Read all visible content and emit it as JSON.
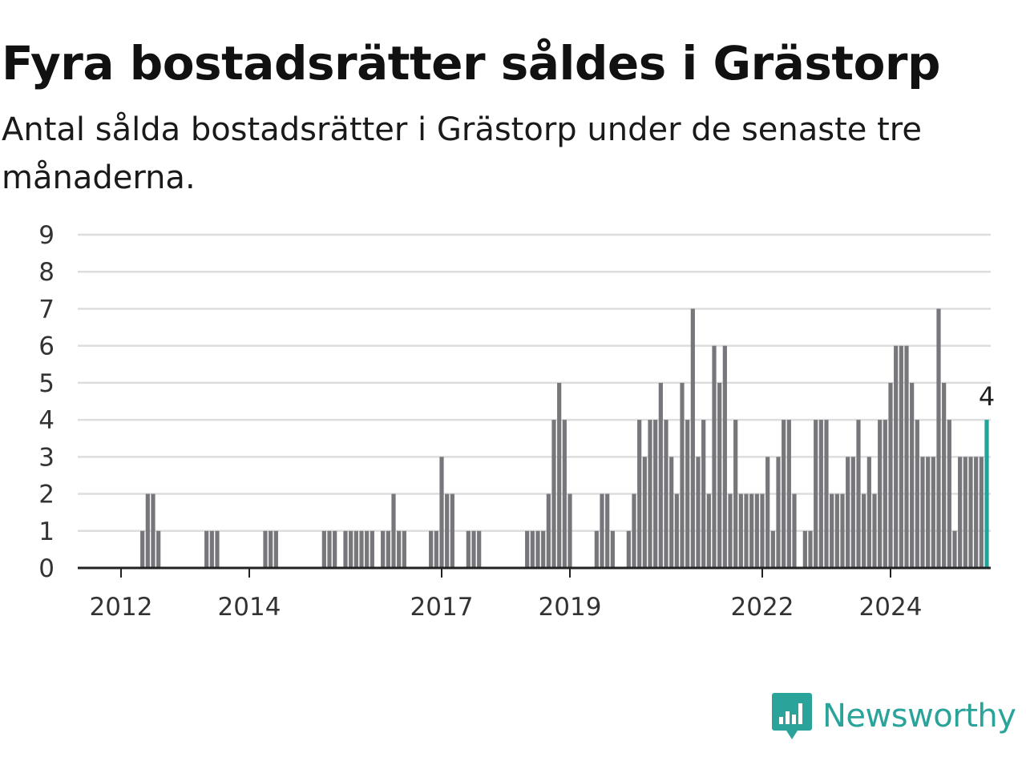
{
  "header": {
    "title": "Fyra bostadsrätter såldes i Grästorp",
    "subtitle": "Antal sålda bostadsrätter i Grästorp under de senaste tre månaderna."
  },
  "brand": {
    "name": "Newsworthy",
    "color": "#2aa39a",
    "icon": "newsworthy-logo-icon"
  },
  "chart_data": {
    "type": "bar",
    "x_unit": "month",
    "start_month": "2011-07",
    "values": [
      0,
      0,
      0,
      0,
      0,
      0,
      0,
      0,
      0,
      0,
      1,
      2,
      2,
      1,
      0,
      0,
      0,
      0,
      0,
      0,
      0,
      0,
      1,
      1,
      1,
      0,
      0,
      0,
      0,
      0,
      0,
      0,
      0,
      1,
      1,
      1,
      0,
      0,
      0,
      0,
      0,
      0,
      0,
      0,
      1,
      1,
      1,
      0,
      1,
      1,
      1,
      1,
      1,
      1,
      0,
      1,
      1,
      2,
      1,
      1,
      0,
      0,
      0,
      0,
      1,
      1,
      3,
      2,
      2,
      0,
      0,
      1,
      1,
      1,
      0,
      0,
      0,
      0,
      0,
      0,
      0,
      0,
      1,
      1,
      1,
      1,
      2,
      4,
      5,
      4,
      2,
      0,
      0,
      0,
      0,
      1,
      2,
      2,
      1,
      0,
      0,
      1,
      2,
      4,
      3,
      4,
      4,
      5,
      4,
      3,
      2,
      5,
      4,
      7,
      3,
      4,
      2,
      6,
      5,
      6,
      2,
      4,
      2,
      2,
      2,
      2,
      2,
      3,
      1,
      3,
      4,
      4,
      2,
      0,
      1,
      1,
      4,
      4,
      4,
      2,
      2,
      2,
      3,
      3,
      4,
      2,
      3,
      2,
      4,
      4,
      5,
      6,
      6,
      6,
      5,
      4,
      3,
      3,
      3,
      7,
      5,
      4,
      1,
      3,
      3,
      3,
      3,
      3,
      4
    ],
    "highlight_last": true,
    "highlight_label": "4",
    "x_ticks": [
      "2012",
      "2014",
      "2017",
      "2019",
      "2022",
      "2024"
    ],
    "y_ticks": [
      "0",
      "1",
      "2",
      "3",
      "4",
      "5",
      "6",
      "7",
      "8",
      "9"
    ],
    "ylim": [
      0,
      9
    ],
    "grid": true,
    "bar_color": "#77767b",
    "highlight_color": "#1fa39a",
    "title": "Fyra bostadsrätter såldes i Grästorp",
    "xlabel": "",
    "ylabel": ""
  }
}
